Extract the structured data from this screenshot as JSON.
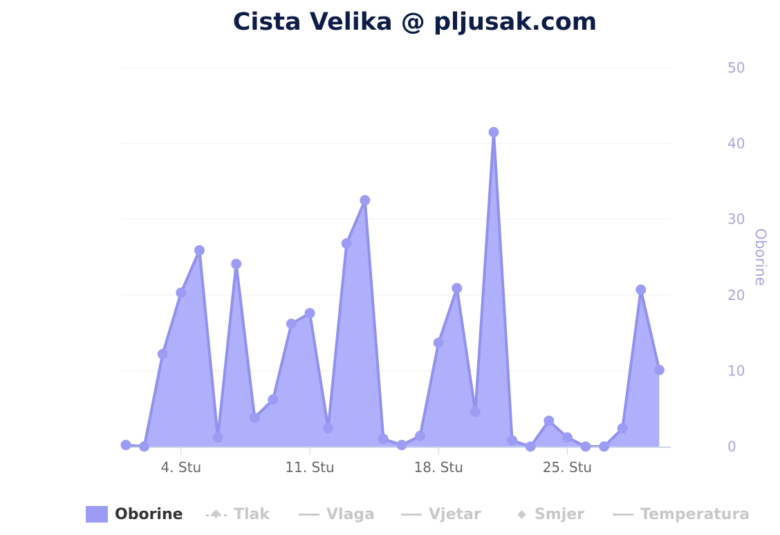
{
  "title": "Cista Velika @ pljusak.com",
  "chart_data": {
    "type": "area",
    "title": "Cista Velika @ pljusak.com",
    "xlabel": "",
    "ylabel": "Oborine",
    "ylim": [
      0,
      50
    ],
    "yticks": [
      "0",
      "10",
      "20",
      "30",
      "40",
      "50"
    ],
    "xtick_labels": [
      {
        "day": 4,
        "label": "4. Stu"
      },
      {
        "day": 11,
        "label": "11. Stu"
      },
      {
        "day": 18,
        "label": "18. Stu"
      },
      {
        "day": 25,
        "label": "25. Stu"
      }
    ],
    "series": [
      {
        "name": "Oborine",
        "color": "#9d9cf5",
        "x": [
          1,
          2,
          3,
          4,
          5,
          6,
          7,
          8,
          9,
          10,
          11,
          12,
          13,
          14,
          15,
          16,
          17,
          18,
          19,
          20,
          21,
          22,
          23,
          24,
          25,
          26,
          27,
          28,
          29,
          30
        ],
        "values": [
          0.2,
          0,
          12.2,
          20.3,
          25.9,
          1.2,
          24.1,
          3.8,
          6.2,
          16.2,
          17.6,
          2.4,
          26.8,
          32.5,
          1,
          0.2,
          1.4,
          13.7,
          20.9,
          4.6,
          41.5,
          0.8,
          0,
          3.4,
          1.2,
          0,
          0,
          2.4,
          20.7,
          10.1
        ]
      }
    ],
    "legend": {
      "position": "bottom",
      "items": [
        {
          "label": "Oborine",
          "active": true,
          "symbol": "box"
        },
        {
          "label": "Tlak",
          "active": false,
          "symbol": "dotted-diamond"
        },
        {
          "label": "Vlaga",
          "active": false,
          "symbol": "line"
        },
        {
          "label": "Vjetar",
          "active": false,
          "symbol": "line"
        },
        {
          "label": "Smjer",
          "active": false,
          "symbol": "diamond"
        },
        {
          "label": "Temperatura",
          "active": false,
          "symbol": "line"
        }
      ]
    },
    "grid": true
  }
}
